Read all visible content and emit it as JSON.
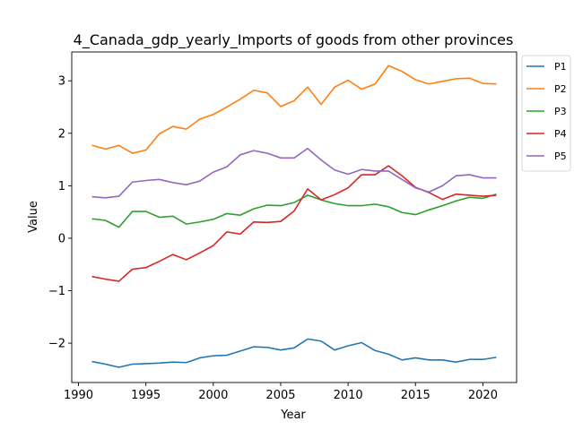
{
  "chart_data": {
    "type": "line",
    "title": "4_Canada_gdp_yearly_Imports of goods from other provinces",
    "xlabel": "Year",
    "ylabel": "Value",
    "xlim": [
      1989.5,
      2022.5
    ],
    "ylim": [
      -2.75,
      3.55
    ],
    "xticks": [
      1990,
      1995,
      2000,
      2005,
      2010,
      2015,
      2020
    ],
    "yticks": [
      -2,
      -1,
      0,
      1,
      2,
      3
    ],
    "grid": false,
    "legend_position": "outside-top-right",
    "x": [
      1991,
      1992,
      1993,
      1994,
      1995,
      1996,
      1997,
      1998,
      1999,
      2000,
      2001,
      2002,
      2003,
      2004,
      2005,
      2006,
      2007,
      2008,
      2009,
      2010,
      2011,
      2012,
      2013,
      2014,
      2015,
      2016,
      2017,
      2018,
      2019,
      2020,
      2021
    ],
    "series": [
      {
        "name": "P1",
        "color": "#1f77b4",
        "values": [
          -2.35,
          -2.4,
          -2.46,
          -2.4,
          -2.39,
          -2.38,
          -2.36,
          -2.37,
          -2.28,
          -2.24,
          -2.23,
          -2.15,
          -2.07,
          -2.08,
          -2.13,
          -2.09,
          -1.92,
          -1.96,
          -2.13,
          -2.05,
          -1.99,
          -2.14,
          -2.21,
          -2.32,
          -2.28,
          -2.32,
          -2.32,
          -2.36,
          -2.31,
          -2.31,
          -2.27
        ]
      },
      {
        "name": "P2",
        "color": "#ff7f0e",
        "values": [
          1.77,
          1.7,
          1.77,
          1.62,
          1.68,
          1.99,
          2.13,
          2.08,
          2.27,
          2.36,
          2.5,
          2.65,
          2.82,
          2.77,
          2.51,
          2.62,
          2.88,
          2.55,
          2.88,
          3.01,
          2.84,
          2.94,
          3.29,
          3.18,
          3.02,
          2.94,
          2.99,
          3.04,
          3.05,
          2.95,
          2.94
        ]
      },
      {
        "name": "P3",
        "color": "#2ca02c",
        "values": [
          0.37,
          0.34,
          0.21,
          0.51,
          0.51,
          0.4,
          0.42,
          0.27,
          0.31,
          0.36,
          0.47,
          0.44,
          0.56,
          0.63,
          0.62,
          0.68,
          0.82,
          0.73,
          0.66,
          0.62,
          0.62,
          0.65,
          0.6,
          0.49,
          0.45,
          0.54,
          0.62,
          0.71,
          0.78,
          0.76,
          0.84
        ]
      },
      {
        "name": "P4",
        "color": "#d62728",
        "values": [
          -0.73,
          -0.78,
          -0.82,
          -0.59,
          -0.56,
          -0.44,
          -0.31,
          -0.41,
          -0.28,
          -0.14,
          0.12,
          0.08,
          0.31,
          0.3,
          0.32,
          0.52,
          0.94,
          0.73,
          0.83,
          0.96,
          1.21,
          1.21,
          1.38,
          1.19,
          0.97,
          0.87,
          0.74,
          0.84,
          0.82,
          0.8,
          0.82
        ]
      },
      {
        "name": "P5",
        "color": "#9467bd",
        "values": [
          0.79,
          0.77,
          0.8,
          1.07,
          1.1,
          1.12,
          1.06,
          1.02,
          1.09,
          1.26,
          1.36,
          1.59,
          1.67,
          1.62,
          1.53,
          1.53,
          1.71,
          1.49,
          1.3,
          1.22,
          1.31,
          1.28,
          1.28,
          1.12,
          0.96,
          0.88,
          1.0,
          1.19,
          1.21,
          1.15,
          1.15
        ]
      }
    ]
  }
}
